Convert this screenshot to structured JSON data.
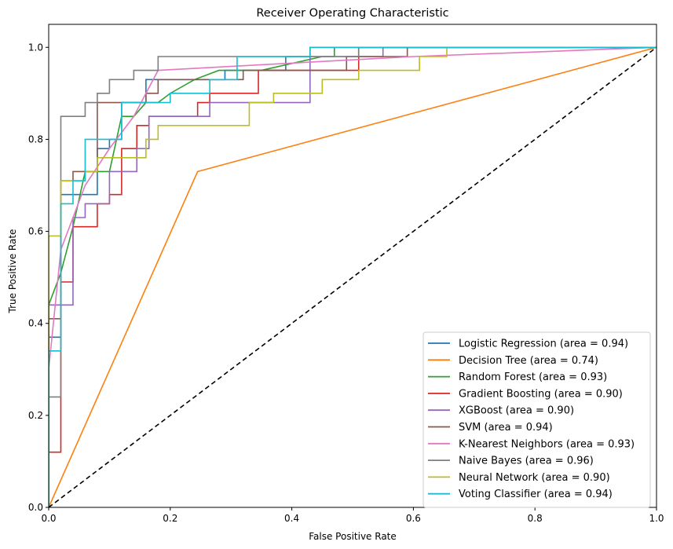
{
  "chart_data": {
    "type": "line",
    "title": "Receiver Operating Characteristic",
    "xlabel": "False Positive Rate",
    "ylabel": "True Positive Rate",
    "xlim": [
      0,
      1
    ],
    "ylim": [
      0,
      1.05
    ],
    "xticks": [
      0.0,
      0.2,
      0.4,
      0.6,
      0.8,
      1.0
    ],
    "yticks": [
      0.0,
      0.2,
      0.4,
      0.6,
      0.8,
      1.0
    ],
    "xtick_labels": [
      "0.0",
      "0.2",
      "0.4",
      "0.6",
      "0.8",
      "1.0"
    ],
    "ytick_labels": [
      "0.0",
      "0.2",
      "0.4",
      "0.6",
      "0.8",
      "1.0"
    ],
    "grid": false,
    "legend_position": "lower-right",
    "diagonal": {
      "x": [
        0,
        1
      ],
      "y": [
        0,
        1
      ],
      "color": "#000000",
      "style": "dashed"
    },
    "series": [
      {
        "name": "Logistic Regression (area = 0.94)",
        "color": "#1f77b4",
        "x": [
          0,
          0,
          0.02,
          0.02,
          0.04,
          0.04,
          0.08,
          0.08,
          0.1,
          0.1,
          0.12,
          0.12,
          0.16,
          0.16,
          0.29,
          0.29,
          0.39,
          0.39,
          0.43,
          0.43,
          1.0
        ],
        "y": [
          0,
          0.37,
          0.37,
          0.68,
          0.68,
          0.68,
          0.68,
          0.78,
          0.78,
          0.8,
          0.8,
          0.88,
          0.88,
          0.93,
          0.93,
          0.95,
          0.95,
          0.98,
          0.98,
          1.0,
          1.0
        ]
      },
      {
        "name": "Decision Tree (area = 0.74)",
        "color": "#ff7f0e",
        "x": [
          0,
          0.245,
          1.0
        ],
        "y": [
          0,
          0.73,
          1.0
        ]
      },
      {
        "name": "Random Forest (area = 0.93)",
        "color": "#2ca02c",
        "x": [
          0,
          0,
          0.02,
          0.04,
          0.06,
          0.06,
          0.1,
          0.12,
          0.12,
          0.14,
          0.16,
          0.18,
          0.2,
          0.24,
          0.28,
          0.35,
          0.45,
          0.47,
          0.47,
          1.0
        ],
        "y": [
          0,
          0.44,
          0.51,
          0.61,
          0.73,
          0.73,
          0.73,
          0.85,
          0.85,
          0.85,
          0.88,
          0.88,
          0.9,
          0.93,
          0.95,
          0.95,
          0.98,
          0.98,
          1.0,
          1.0
        ]
      },
      {
        "name": "Gradient Boosting (area = 0.90)",
        "color": "#d62728",
        "x": [
          0,
          0,
          0.02,
          0.02,
          0.04,
          0.04,
          0.08,
          0.08,
          0.1,
          0.1,
          0.12,
          0.12,
          0.145,
          0.145,
          0.165,
          0.165,
          0.245,
          0.245,
          0.265,
          0.265,
          0.345,
          0.345,
          0.51,
          0.51,
          1.0
        ],
        "y": [
          0,
          0.12,
          0.12,
          0.49,
          0.49,
          0.61,
          0.61,
          0.66,
          0.66,
          0.68,
          0.68,
          0.78,
          0.78,
          0.83,
          0.83,
          0.85,
          0.85,
          0.88,
          0.88,
          0.9,
          0.9,
          0.95,
          0.95,
          1.0,
          1.0
        ]
      },
      {
        "name": "XGBoost (area = 0.90)",
        "color": "#9467bd",
        "x": [
          0,
          0,
          0.04,
          0.04,
          0.06,
          0.06,
          0.1,
          0.1,
          0.145,
          0.145,
          0.165,
          0.165,
          0.265,
          0.265,
          0.43,
          0.43,
          0.55,
          0.55,
          1.0
        ],
        "y": [
          0,
          0.44,
          0.44,
          0.63,
          0.63,
          0.66,
          0.66,
          0.73,
          0.73,
          0.78,
          0.78,
          0.85,
          0.85,
          0.88,
          0.88,
          0.98,
          0.98,
          1.0,
          1.0
        ]
      },
      {
        "name": "SVM (area = 0.94)",
        "color": "#8c564b",
        "x": [
          0,
          0,
          0.02,
          0.02,
          0.04,
          0.04,
          0.08,
          0.08,
          0.12,
          0.12,
          0.16,
          0.16,
          0.18,
          0.18,
          0.32,
          0.32,
          0.49,
          0.49,
          0.59,
          0.59,
          1.0
        ],
        "y": [
          0,
          0.41,
          0.41,
          0.71,
          0.71,
          0.73,
          0.73,
          0.88,
          0.88,
          0.88,
          0.88,
          0.9,
          0.9,
          0.93,
          0.93,
          0.95,
          0.95,
          0.98,
          0.98,
          1.0,
          1.0
        ]
      },
      {
        "name": "K-Nearest Neighbors (area = 0.93)",
        "color": "#e377c2",
        "x": [
          0,
          0.02,
          0.04,
          0.06,
          0.1,
          0.14,
          0.18,
          0.6,
          1.0
        ],
        "y": [
          0.3,
          0.56,
          0.63,
          0.7,
          0.78,
          0.85,
          0.95,
          0.98,
          1.0
        ]
      },
      {
        "name": "Naive Bayes (area = 0.96)",
        "color": "#7f7f7f",
        "x": [
          0,
          0,
          0.02,
          0.02,
          0.06,
          0.06,
          0.08,
          0.08,
          0.1,
          0.1,
          0.14,
          0.14,
          0.18,
          0.18,
          0.51,
          0.51,
          1.0
        ],
        "y": [
          0,
          0.24,
          0.24,
          0.85,
          0.85,
          0.88,
          0.88,
          0.9,
          0.9,
          0.93,
          0.93,
          0.95,
          0.95,
          0.98,
          0.98,
          1.0,
          1.0
        ]
      },
      {
        "name": "Neural Network (area = 0.90)",
        "color": "#bcbd22",
        "x": [
          0,
          0,
          0.02,
          0.02,
          0.06,
          0.06,
          0.08,
          0.08,
          0.16,
          0.16,
          0.18,
          0.18,
          0.33,
          0.33,
          0.37,
          0.37,
          0.45,
          0.45,
          0.51,
          0.51,
          0.61,
          0.61,
          0.655,
          0.655,
          1.0
        ],
        "y": [
          0,
          0.59,
          0.59,
          0.71,
          0.71,
          0.73,
          0.73,
          0.76,
          0.76,
          0.8,
          0.8,
          0.83,
          0.83,
          0.88,
          0.88,
          0.9,
          0.9,
          0.93,
          0.93,
          0.95,
          0.95,
          0.98,
          0.98,
          1.0,
          1.0
        ]
      },
      {
        "name": "Voting Classifier (area = 0.94)",
        "color": "#17becf",
        "x": [
          0,
          0,
          0.02,
          0.02,
          0.04,
          0.04,
          0.06,
          0.06,
          0.12,
          0.12,
          0.2,
          0.2,
          0.265,
          0.265,
          0.31,
          0.31,
          0.43,
          0.43,
          1.0
        ],
        "y": [
          0,
          0.34,
          0.34,
          0.66,
          0.66,
          0.71,
          0.71,
          0.8,
          0.8,
          0.88,
          0.88,
          0.9,
          0.9,
          0.93,
          0.93,
          0.98,
          0.98,
          1.0,
          1.0
        ]
      }
    ]
  }
}
